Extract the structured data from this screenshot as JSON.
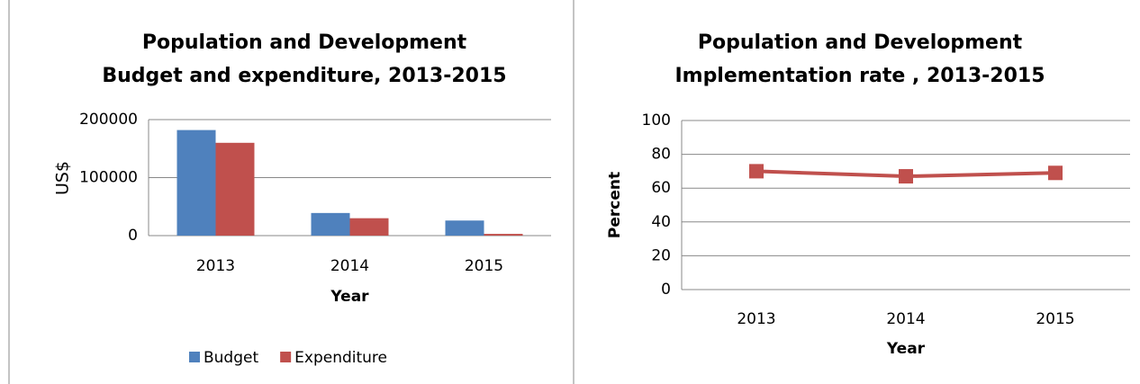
{
  "chart_data": [
    {
      "type": "bar",
      "title": "Population and Development",
      "subtitle": "Budget and expenditure, 2013-2015",
      "x_label": "Year",
      "y_label": "US$",
      "categories": [
        "2013",
        "2014",
        "2015"
      ],
      "series": [
        {
          "name": "Budget",
          "color": "#4f81bd",
          "values": [
            182000,
            39000,
            26000
          ]
        },
        {
          "name": "Expenditure",
          "color": "#c0504d",
          "values": [
            160000,
            30000,
            3000
          ]
        }
      ],
      "ylim": [
        0,
        200000
      ],
      "yticks": [
        0,
        100000,
        200000
      ],
      "grid": true,
      "legend": "bottom"
    },
    {
      "type": "line",
      "title": "Population and Development",
      "subtitle": "Implementation rate , 2013-2015",
      "x_label": "Year",
      "y_label": "Percent",
      "categories": [
        "2013",
        "2014",
        "2015"
      ],
      "series": [
        {
          "name": "Implementation rate",
          "color": "#c0504d",
          "values": [
            70,
            67,
            69
          ]
        }
      ],
      "ylim": [
        0,
        100
      ],
      "yticks": [
        0,
        20,
        40,
        60,
        80,
        100
      ],
      "grid": true
    }
  ]
}
